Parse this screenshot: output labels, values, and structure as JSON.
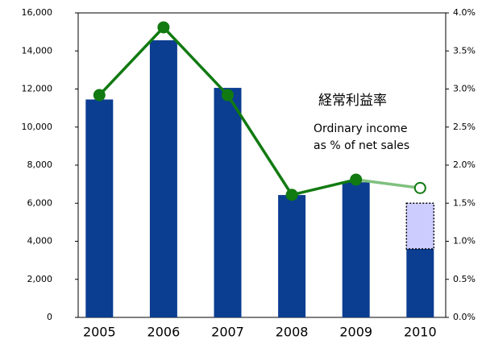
{
  "chart_data": {
    "type": "bar",
    "categories": [
      "2005",
      "2006",
      "2007",
      "2008",
      "2009",
      "2010"
    ],
    "series": [
      {
        "color": "#0b3d91",
        "values": [
          11450,
          14560,
          12060,
          6430,
          7100,
          3600
        ]
      },
      {
        "color": "#ccccff",
        "dashed": true,
        "values": [
          null,
          null,
          null,
          null,
          null,
          2400
        ]
      },
      {
        "type": "line",
        "axis": "y2",
        "color": "#117a11",
        "forecast_color": "#7fc07f",
        "forecast_from": 5,
        "values": [
          2.92,
          3.81,
          2.92,
          1.61,
          1.81,
          1.7
        ]
      }
    ],
    "ylim": [
      0,
      16000
    ],
    "yticks": [
      0,
      {
        "value": 2000,
        "label": "2,000"
      },
      {
        "value": 4000,
        "label": "4,000"
      },
      {
        "value": 6000,
        "label": "6,000"
      },
      {
        "value": 8000,
        "label": "8,000"
      },
      {
        "value": 10000,
        "label": "10,000"
      },
      {
        "value": 12000,
        "label": "12,000"
      },
      {
        "value": 14000,
        "label": "14,000"
      },
      {
        "value": 16000,
        "label": "16,000"
      }
    ],
    "y2lim": [
      0,
      4
    ],
    "y2ticks": [
      {
        "value": 0,
        "label": "0.0%"
      },
      {
        "value": 0.5,
        "label": "0.5%"
      },
      {
        "value": 1,
        "label": "1.0%"
      },
      {
        "value": 1.5,
        "label": "1.5%"
      },
      {
        "value": 2,
        "label": "2.0%"
      },
      {
        "value": 2.5,
        "label": "2.5%"
      },
      {
        "value": 3,
        "label": "3.0%"
      },
      {
        "value": 3.5,
        "label": "3.5%"
      },
      {
        "value": 4,
        "label": "4.0%"
      }
    ],
    "annotations": [
      "経常利益率",
      "Ordinary income",
      "as % of net sales"
    ]
  }
}
